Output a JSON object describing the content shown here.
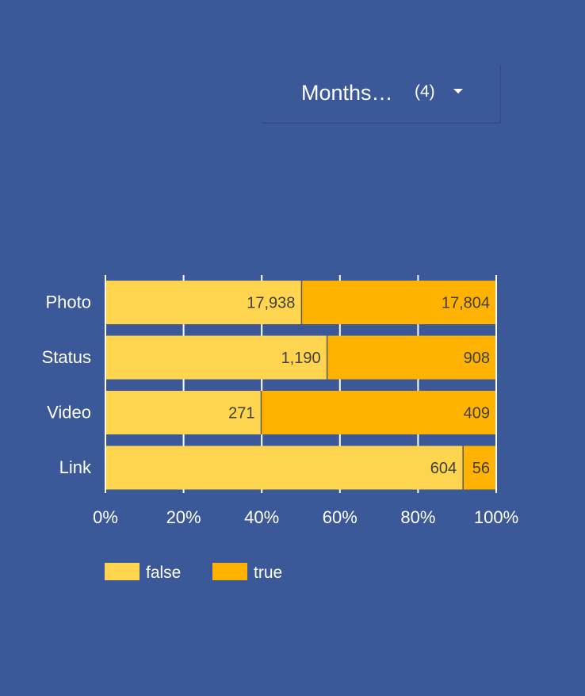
{
  "filter": {
    "label": "Months…",
    "count": "(4)",
    "caret_icon": "caret-down-icon"
  },
  "colors": {
    "background": "#3b5998",
    "false": "#ffd54f",
    "true": "#ffb300",
    "grid": "#ffffff",
    "text": "#ffffff",
    "value_label": "#404040"
  },
  "chart_data": {
    "type": "bar",
    "orientation": "horizontal",
    "stacked": "percent",
    "categories": [
      "Photo",
      "Status",
      "Video",
      "Link"
    ],
    "series": [
      {
        "name": "false",
        "values": [
          17938,
          1190,
          271,
          604
        ],
        "labels": [
          "17,938",
          "1,190",
          "271",
          "604"
        ]
      },
      {
        "name": "true",
        "values": [
          17804,
          908,
          409,
          56
        ],
        "labels": [
          "17,804",
          "908",
          "409",
          "56"
        ]
      }
    ],
    "xticks": [
      "0%",
      "20%",
      "40%",
      "60%",
      "80%",
      "100%"
    ],
    "xlim": [
      0,
      100
    ],
    "grid": true,
    "legend": "bottom-left",
    "title": "",
    "xlabel": "",
    "ylabel": ""
  }
}
